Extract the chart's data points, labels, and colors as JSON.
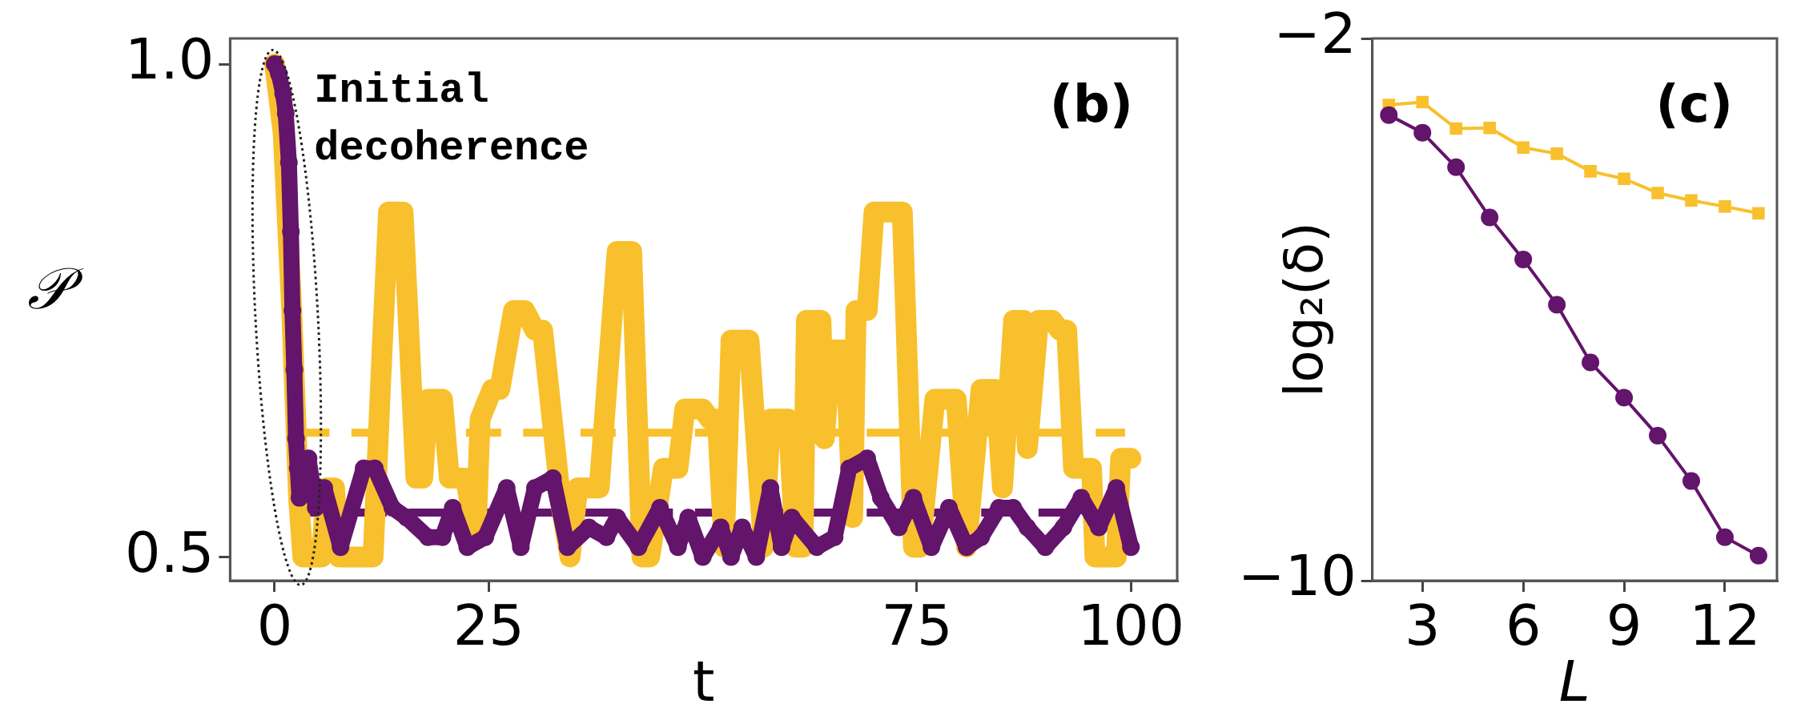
{
  "chart_data": [
    {
      "type": "line",
      "title": "(b)",
      "xlabel": "t",
      "ylabel": "𝒫",
      "xlim": [
        -5.2,
        105.4
      ],
      "ylim": [
        0.476,
        1.026
      ],
      "xticks": [
        0,
        25,
        75,
        100
      ],
      "yticks": [
        0.5,
        {
          "value": 1,
          "label": "1.0"
        }
      ],
      "grid": false,
      "legend": false,
      "line_style": "solid",
      "annotations": [
        "Initial\ndecoherence"
      ],
      "ref_lines": [
        {
          "axis": "y",
          "value": 0.626,
          "color": "#f8c02c",
          "line_style": "dashed"
        },
        {
          "axis": "y",
          "value": 0.545,
          "color": "#63146b",
          "line_style": "dashed"
        }
      ],
      "series": [
        {
          "color": "#f8c02c",
          "marker": "none",
          "x": [
            0,
            1,
            2,
            2.8,
            3.3,
            5.5,
            6,
            7,
            7.5,
            11.5,
            12.5,
            13.3,
            15,
            16.5,
            17.3,
            17.9,
            19.6,
            20.4,
            22.3,
            23.5,
            24,
            25.4,
            26.3,
            27.9,
            29.2,
            30.4,
            31.3,
            33.5,
            34.5,
            35.4,
            37.9,
            40,
            41.7,
            42.9,
            43.8,
            45.4,
            47.1,
            47.9,
            50,
            50.8,
            51.7,
            52.5,
            53.3,
            55.4,
            57.1,
            57.9,
            60,
            60.8,
            61.7,
            62.1,
            63.8,
            64.2,
            65,
            66.7,
            67.5,
            67.9,
            69.2,
            70,
            73.3,
            74.6,
            75.4,
            77.1,
            79.6,
            80.8,
            82.5,
            84.2,
            85,
            86.3,
            87.5,
            87.9,
            89.2,
            90.8,
            91.7,
            92.5,
            93.3,
            95.4,
            95.8,
            98.3,
            98.8,
            100
          ],
          "values": [
            1.0,
            0.93,
            0.75,
            0.56,
            0.5,
            0.5,
            0.57,
            0.57,
            0.5,
            0.5,
            0.7,
            0.85,
            0.85,
            0.58,
            0.58,
            0.66,
            0.66,
            0.58,
            0.58,
            0.52,
            0.64,
            0.67,
            0.67,
            0.75,
            0.75,
            0.73,
            0.73,
            0.55,
            0.5,
            0.57,
            0.57,
            0.81,
            0.81,
            0.5,
            0.5,
            0.59,
            0.59,
            0.65,
            0.65,
            0.64,
            0.64,
            0.51,
            0.72,
            0.72,
            0.51,
            0.64,
            0.64,
            0.51,
            0.51,
            0.74,
            0.74,
            0.62,
            0.71,
            0.71,
            0.54,
            0.75,
            0.75,
            0.85,
            0.85,
            0.51,
            0.51,
            0.66,
            0.66,
            0.51,
            0.67,
            0.67,
            0.57,
            0.74,
            0.74,
            0.61,
            0.74,
            0.74,
            0.73,
            0.73,
            0.59,
            0.59,
            0.5,
            0.5,
            0.6,
            0.6
          ]
        },
        {
          "color": "#63146b",
          "marker": "circle",
          "x": [
            0,
            0.5,
            1,
            1.3,
            1.67,
            1.9,
            2.08,
            2.3,
            2.5,
            2.7,
            2.9,
            3.4,
            3.96,
            4.8,
            5.8,
            7.7,
            10.4,
            11.7,
            13.75,
            15.4,
            17.9,
            19.6,
            20.8,
            22.5,
            24.6,
            27.1,
            28.75,
            30.4,
            32.5,
            34.2,
            36.7,
            38.75,
            40,
            42.5,
            45,
            47.1,
            48.3,
            50,
            52.1,
            53.3,
            54.6,
            56.25,
            57.9,
            59.2,
            60.4,
            63.3,
            65.4,
            67.1,
            69.2,
            70.8,
            72.9,
            74.6,
            76.7,
            78.75,
            80.8,
            82.5,
            84.6,
            86.25,
            87.9,
            90,
            92.1,
            94.2,
            96.25,
            98.3,
            100
          ],
          "values": [
            1.0,
            0.99,
            0.97,
            0.95,
            0.9,
            0.83,
            0.75,
            0.69,
            0.62,
            0.59,
            0.56,
            0.58,
            0.6,
            0.55,
            0.57,
            0.51,
            0.59,
            0.59,
            0.55,
            0.54,
            0.52,
            0.52,
            0.55,
            0.51,
            0.52,
            0.57,
            0.51,
            0.57,
            0.58,
            0.51,
            0.53,
            0.52,
            0.54,
            0.51,
            0.55,
            0.51,
            0.54,
            0.5,
            0.53,
            0.5,
            0.53,
            0.5,
            0.57,
            0.51,
            0.54,
            0.51,
            0.52,
            0.59,
            0.6,
            0.56,
            0.53,
            0.56,
            0.51,
            0.55,
            0.51,
            0.52,
            0.55,
            0.55,
            0.53,
            0.51,
            0.53,
            0.56,
            0.53,
            0.57,
            0.51
          ]
        }
      ]
    },
    {
      "type": "line",
      "title": "(c)",
      "xlabel": "L",
      "ylabel": "log₂(δ)",
      "xlim": [
        1.51,
        13.55
      ],
      "ylim": [
        -10,
        -2
      ],
      "xticks": [
        3,
        6,
        9,
        12
      ],
      "yticks": [
        {
          "value": -10,
          "label": "−10"
        },
        {
          "value": -2,
          "label": "−2"
        }
      ],
      "grid": false,
      "legend": false,
      "line_style": "solid",
      "x": [
        2,
        3,
        4,
        5,
        6,
        7,
        8,
        9,
        10,
        11,
        12,
        13
      ],
      "series": [
        {
          "color": "#f8c02c",
          "marker": "square",
          "values": [
            -2.98,
            -2.94,
            -3.33,
            -3.32,
            -3.61,
            -3.7,
            -3.96,
            -4.07,
            -4.28,
            -4.39,
            -4.48,
            -4.58
          ]
        },
        {
          "color": "#63146b",
          "marker": "circle",
          "values": [
            -3.13,
            -3.39,
            -3.9,
            -4.64,
            -5.26,
            -5.93,
            -6.78,
            -7.3,
            -7.86,
            -8.53,
            -9.36,
            -9.63
          ]
        }
      ]
    }
  ]
}
